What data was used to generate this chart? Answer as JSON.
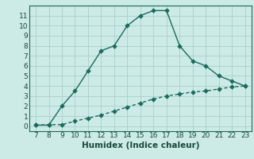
{
  "x": [
    7,
    8,
    9,
    10,
    11,
    12,
    13,
    14,
    15,
    16,
    17,
    18,
    19,
    20,
    21,
    22,
    23
  ],
  "y_main": [
    0.1,
    0.1,
    2.0,
    3.5,
    5.5,
    7.5,
    8.0,
    10.0,
    11.0,
    11.5,
    11.5,
    8.0,
    6.5,
    6.0,
    5.0,
    4.5,
    4.0
  ],
  "y_line2": [
    0.1,
    0.15,
    0.15,
    0.5,
    0.8,
    1.1,
    1.5,
    1.9,
    2.3,
    2.7,
    3.0,
    3.2,
    3.4,
    3.5,
    3.7,
    3.9,
    4.0
  ],
  "line_color": "#1a6b5a",
  "bg_color": "#cceae6",
  "grid_color": "#aacfcc",
  "xlabel": "Humidex (Indice chaleur)",
  "xlim": [
    6.5,
    23.5
  ],
  "ylim": [
    -0.5,
    12.0
  ],
  "xticks": [
    7,
    8,
    9,
    10,
    11,
    12,
    13,
    14,
    15,
    16,
    17,
    18,
    19,
    20,
    21,
    22,
    23
  ],
  "yticks": [
    0,
    1,
    2,
    3,
    4,
    5,
    6,
    7,
    8,
    9,
    10,
    11
  ],
  "markersize": 2.8,
  "linewidth": 1.0,
  "xlabel_fontsize": 7.5,
  "tick_fontsize": 6.5,
  "font_color": "#1a4a3a"
}
